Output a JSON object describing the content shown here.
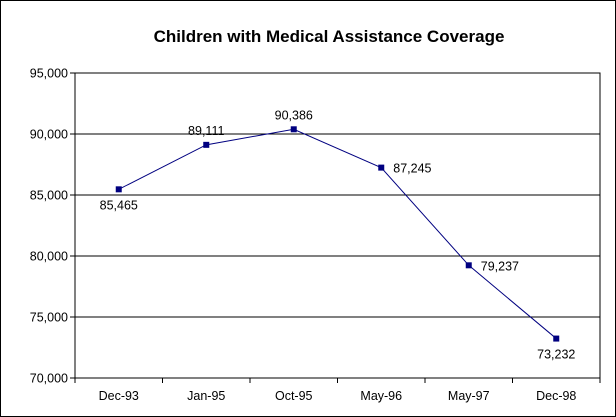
{
  "chart_data": {
    "type": "line",
    "title": "Children with Medical Assistance Coverage",
    "xlabel": "",
    "ylabel": "",
    "categories": [
      "Dec-93",
      "Jan-95",
      "Oct-95",
      "May-96",
      "May-97",
      "Dec-98"
    ],
    "series": [
      {
        "values": [
          85465,
          89111,
          90386,
          87245,
          79237,
          73232
        ],
        "data_labels": [
          "85,465",
          "89,111",
          "90,386",
          "87,245",
          "79,237",
          "73,232"
        ],
        "color": "#000080",
        "marker": "square"
      }
    ],
    "ylim": [
      70000,
      95000
    ],
    "yticks": [
      70000,
      75000,
      80000,
      85000,
      90000,
      95000
    ],
    "ytick_labels": [
      "70,000",
      "75,000",
      "80,000",
      "85,000",
      "90,000",
      "95,000"
    ],
    "grid": "horizontal",
    "legend": "none"
  }
}
